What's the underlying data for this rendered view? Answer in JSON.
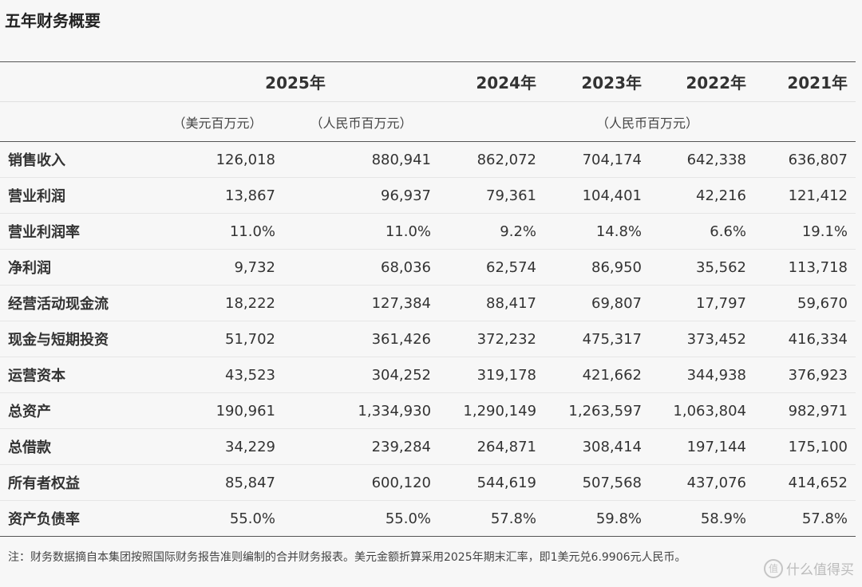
{
  "title": "五年财务概要",
  "header": {
    "years": [
      "2025年",
      "2024年",
      "2023年",
      "2022年",
      "2021年"
    ],
    "unit_usd": "（美元百万元）",
    "unit_rmb_2025": "（人民币百万元）",
    "unit_rmb_other": "（人民币百万元）"
  },
  "rows": [
    {
      "label": "销售收入",
      "values": [
        "126,018",
        "880,941",
        "862,072",
        "704,174",
        "642,338",
        "636,807"
      ]
    },
    {
      "label": "营业利润",
      "values": [
        "13,867",
        "96,937",
        "79,361",
        "104,401",
        "42,216",
        "121,412"
      ]
    },
    {
      "label": "营业利润率",
      "values": [
        "11.0%",
        "11.0%",
        "9.2%",
        "14.8%",
        "6.6%",
        "19.1%"
      ]
    },
    {
      "label": "净利润",
      "values": [
        "9,732",
        "68,036",
        "62,574",
        "86,950",
        "35,562",
        "113,718"
      ]
    },
    {
      "label": "经营活动现金流",
      "values": [
        "18,222",
        "127,384",
        "88,417",
        "69,807",
        "17,797",
        "59,670"
      ]
    },
    {
      "label": "现金与短期投资",
      "values": [
        "51,702",
        "361,426",
        "372,232",
        "475,317",
        "373,452",
        "416,334"
      ]
    },
    {
      "label": "运营资本",
      "values": [
        "43,523",
        "304,252",
        "319,178",
        "421,662",
        "344,938",
        "376,923"
      ]
    },
    {
      "label": "总资产",
      "values": [
        "190,961",
        "1,334,930",
        "1,290,149",
        "1,263,597",
        "1,063,804",
        "982,971"
      ]
    },
    {
      "label": "总借款",
      "values": [
        "34,229",
        "239,284",
        "264,871",
        "308,414",
        "197,144",
        "175,100"
      ]
    },
    {
      "label": "所有者权益",
      "values": [
        "85,847",
        "600,120",
        "544,619",
        "507,568",
        "437,076",
        "414,652"
      ]
    },
    {
      "label": "资产负债率",
      "values": [
        "55.0%",
        "55.0%",
        "57.8%",
        "59.8%",
        "58.9%",
        "57.8%"
      ]
    }
  ],
  "footnote": "注：财务数据摘自本集团按照国际财务报告准则编制的合并财务报表。美元金额折算采用2025年期末汇率，即1美元兑6.9906元人民币。",
  "watermark": {
    "icon": "值",
    "text": "什么值得买"
  }
}
